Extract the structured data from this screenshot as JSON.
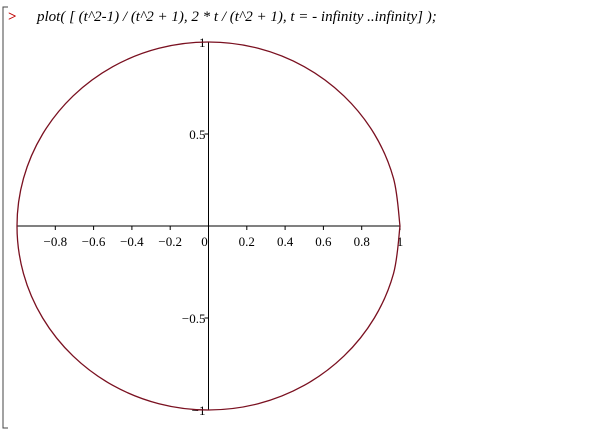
{
  "prompt": ">",
  "command": "plot( [ (t^2-1) / (t^2 + 1), 2 * t / (t^2 + 1), t = - infinity ..infinity] );",
  "chart_data": {
    "type": "line",
    "xlim": [
      -1,
      1
    ],
    "ylim": [
      -1,
      1
    ],
    "xticks": [
      {
        "value": -0.8,
        "label": "−0.8"
      },
      {
        "value": -0.6,
        "label": "−0.6"
      },
      {
        "value": -0.4,
        "label": "−0.4"
      },
      {
        "value": -0.2,
        "label": "−0.2"
      },
      0,
      0.2,
      0.4,
      0.6,
      0.8,
      1
    ],
    "yticks": [
      1,
      0.5,
      {
        "value": -0.5,
        "label": "−0.5"
      },
      {
        "value": -1,
        "label": "−1"
      }
    ],
    "series": [
      {
        "color": "#7a1020",
        "x": [
          1,
          0.966,
          0.866,
          0.707,
          0.5,
          0.259,
          0,
          -0.259,
          -0.5,
          -0.707,
          -0.866,
          -0.966,
          -1,
          -0.966,
          -0.866,
          -0.707,
          -0.5,
          -0.259,
          0,
          0.259,
          0.5,
          0.707,
          0.866,
          0.966,
          1
        ],
        "values": [
          0,
          0.259,
          0.5,
          0.707,
          0.866,
          0.966,
          1,
          0.966,
          0.866,
          0.707,
          0.5,
          0.259,
          0,
          -0.259,
          -0.5,
          -0.707,
          -0.866,
          -0.966,
          -1,
          -0.966,
          -0.866,
          -0.707,
          -0.5,
          -0.259,
          0
        ]
      }
    ]
  }
}
